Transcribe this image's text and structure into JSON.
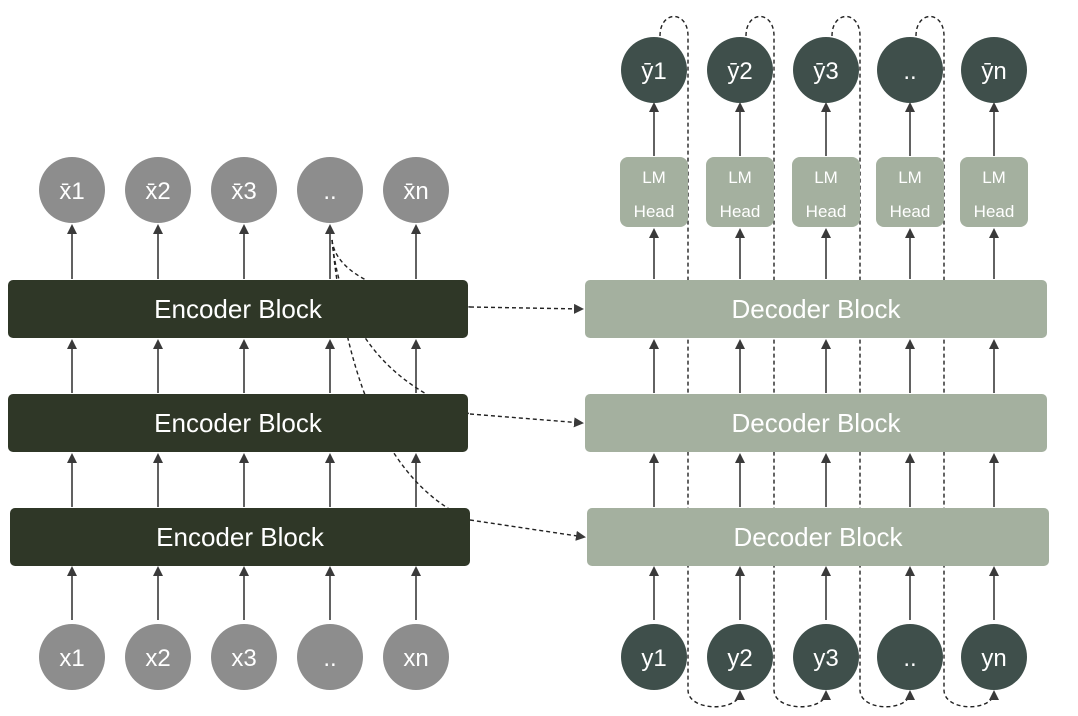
{
  "colors": {
    "encoder_block": "#2f3727",
    "decoder_block": "#a4b09f",
    "encoder_node": "#8d8d8d",
    "decoder_node": "#3f4f4b",
    "lm_head": "#a4b09f",
    "arrow": "#3a3a3a"
  },
  "encoder": {
    "block_label": "Encoder Block",
    "inputs": [
      "x1",
      "x2",
      "x3",
      "..",
      "xn"
    ],
    "outputs": [
      "x̄1",
      "x̄2",
      "x̄3",
      "..",
      "x̄n"
    ]
  },
  "decoder": {
    "block_label": "Decoder Block",
    "inputs": [
      "y1",
      "y2",
      "y3",
      "..",
      "yn"
    ],
    "outputs": [
      "ȳ1",
      "ȳ2",
      "ȳ3",
      "..",
      "ȳn"
    ],
    "head_line1": "LM",
    "head_line2": "Head"
  }
}
